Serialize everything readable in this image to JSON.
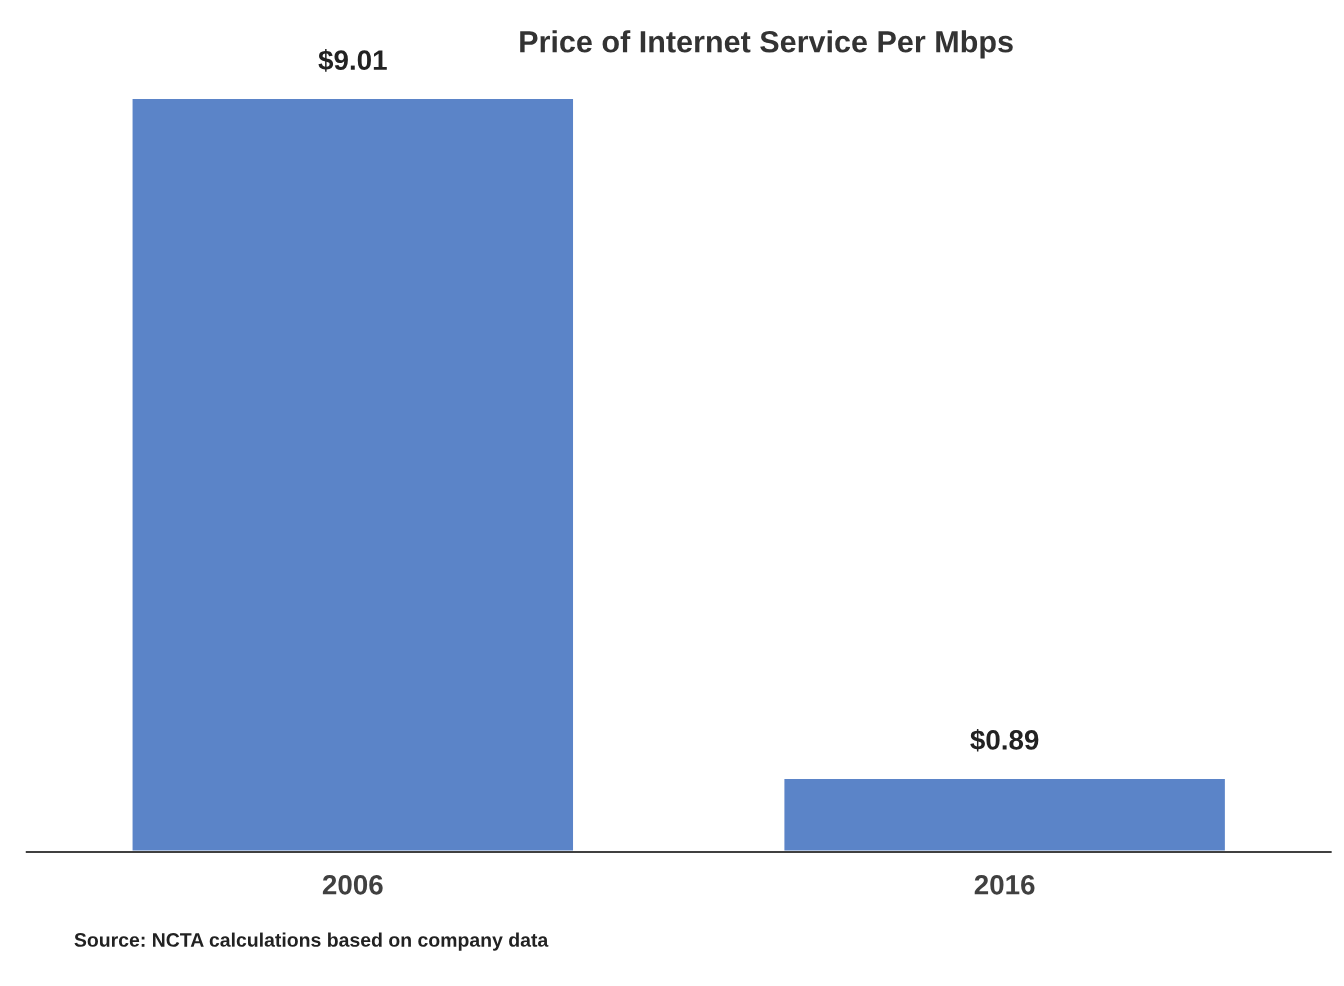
{
  "chart_data": {
    "type": "bar",
    "title": "Price of Internet Service Per Mbps",
    "categories": [
      "2006",
      "2016"
    ],
    "values": [
      9.01,
      0.89
    ],
    "value_labels": [
      "$9.01",
      "$0.89"
    ],
    "color": "#5b84c8",
    "grid": false,
    "annotations": [
      "Source: NCTA calculations based on company data"
    ]
  }
}
